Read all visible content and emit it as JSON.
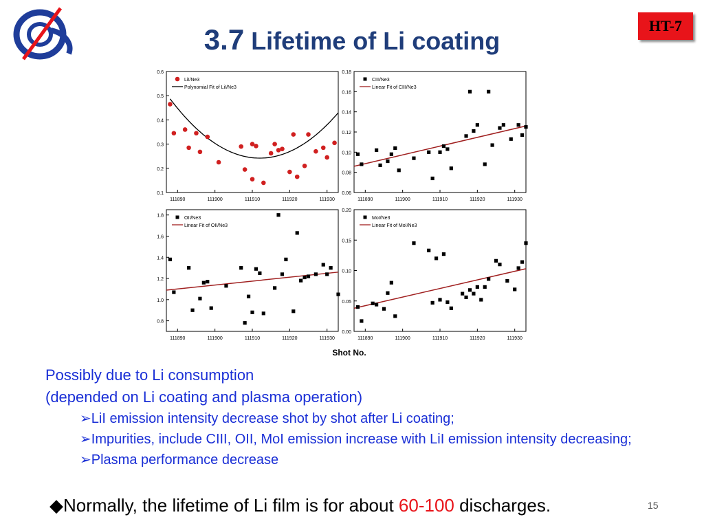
{
  "header": {
    "title_number": "3.7",
    "title_text": "Lifetime of Li coating",
    "badge": "HT-7"
  },
  "logo": {
    "icon": "institute-logo"
  },
  "colors": {
    "title": "#1f3d7a",
    "badge": "#e8141a",
    "notes": "#1a2fd6",
    "fit_line": "#a02020",
    "li_points": "#d02020"
  },
  "chart_common": {
    "xlabel": "Shot No."
  },
  "chart_data": [
    {
      "type": "scatter",
      "legend": [
        "LiI/Ne3",
        "Polynomial Fit of LiI/Ne3"
      ],
      "xlim": [
        111887,
        111933
      ],
      "ylim": [
        0.1,
        0.6
      ],
      "xticks": [
        111890,
        111900,
        111910,
        111920,
        111930
      ],
      "yticks": [
        0.1,
        0.2,
        0.3,
        0.4,
        0.5,
        0.6
      ],
      "ytick_labels": [
        "0.1",
        "0.2",
        "0.3",
        "0.4",
        "0.5",
        "0.6"
      ],
      "xtick_labels": [
        "111890",
        "111900",
        "111910",
        "111920",
        "111930"
      ],
      "marker": "circle",
      "fit": "poly",
      "fit_coeffs": {
        "a": 0.000425,
        "b": 111912,
        "c": 0.242
      },
      "points": [
        [
          111888,
          0.465
        ],
        [
          111889,
          0.345
        ],
        [
          111892,
          0.36
        ],
        [
          111893,
          0.285
        ],
        [
          111895,
          0.345
        ],
        [
          111896,
          0.268
        ],
        [
          111898,
          0.33
        ],
        [
          111901,
          0.225
        ],
        [
          111907,
          0.29
        ],
        [
          111908,
          0.195
        ],
        [
          111910,
          0.155
        ],
        [
          111910,
          0.3
        ],
        [
          111911,
          0.292
        ],
        [
          111913,
          0.14
        ],
        [
          111915,
          0.262
        ],
        [
          111916,
          0.3
        ],
        [
          111917,
          0.275
        ],
        [
          111918,
          0.28
        ],
        [
          111920,
          0.185
        ],
        [
          111921,
          0.34
        ],
        [
          111922,
          0.165
        ],
        [
          111924,
          0.21
        ],
        [
          111925,
          0.34
        ],
        [
          111927,
          0.27
        ],
        [
          111929,
          0.285
        ],
        [
          111930,
          0.245
        ],
        [
          111932,
          0.305
        ]
      ]
    },
    {
      "type": "scatter",
      "legend": [
        "CIII/Ne3",
        "Linear Fit of CIII/Ne3"
      ],
      "xlim": [
        111887,
        111933
      ],
      "ylim": [
        0.06,
        0.18
      ],
      "xticks": [
        111890,
        111900,
        111910,
        111920,
        111930
      ],
      "yticks": [
        0.06,
        0.08,
        0.1,
        0.12,
        0.14,
        0.16,
        0.18
      ],
      "ytick_labels": [
        "0.06",
        "0.08",
        "0.10",
        "0.12",
        "0.14",
        "0.16",
        "0.18"
      ],
      "xtick_labels": [
        "111890",
        "111900",
        "111910",
        "111920",
        "111930"
      ],
      "marker": "square",
      "fit": "linear",
      "fit_line": [
        [
          111887,
          0.086
        ],
        [
          111933,
          0.126
        ]
      ],
      "points": [
        [
          111888,
          0.098
        ],
        [
          111889,
          0.088
        ],
        [
          111893,
          0.102
        ],
        [
          111894,
          0.087
        ],
        [
          111896,
          0.091
        ],
        [
          111897,
          0.098
        ],
        [
          111898,
          0.104
        ],
        [
          111899,
          0.082
        ],
        [
          111903,
          0.094
        ],
        [
          111907,
          0.1
        ],
        [
          111908,
          0.074
        ],
        [
          111910,
          0.1
        ],
        [
          111911,
          0.106
        ],
        [
          111912,
          0.103
        ],
        [
          111913,
          0.084
        ],
        [
          111917,
          0.116
        ],
        [
          111918,
          0.16
        ],
        [
          111919,
          0.121
        ],
        [
          111920,
          0.127
        ],
        [
          111922,
          0.088
        ],
        [
          111923,
          0.16
        ],
        [
          111924,
          0.107
        ],
        [
          111926,
          0.124
        ],
        [
          111927,
          0.127
        ],
        [
          111929,
          0.113
        ],
        [
          111931,
          0.127
        ],
        [
          111932,
          0.117
        ],
        [
          111933,
          0.125
        ]
      ]
    },
    {
      "type": "scatter",
      "legend": [
        "OII/Ne3",
        "Linear Fit of OII/Ne3"
      ],
      "xlim": [
        111887,
        111933
      ],
      "ylim": [
        0.7,
        1.85
      ],
      "xticks": [
        111890,
        111900,
        111910,
        111920,
        111930
      ],
      "yticks": [
        0.8,
        1.0,
        1.2,
        1.4,
        1.6,
        1.8
      ],
      "ytick_labels": [
        "0.8",
        "1.0",
        "1.2",
        "1.4",
        "1.6",
        "1.8"
      ],
      "xtick_labels": [
        "111890",
        "111900",
        "111910",
        "111920",
        "111930"
      ],
      "marker": "square",
      "fit": "linear",
      "fit_line": [
        [
          111887,
          1.09
        ],
        [
          111933,
          1.26
        ]
      ],
      "points": [
        [
          111888,
          1.38
        ],
        [
          111889,
          1.07
        ],
        [
          111893,
          1.3
        ],
        [
          111894,
          0.9
        ],
        [
          111896,
          1.01
        ],
        [
          111897,
          1.16
        ],
        [
          111898,
          1.17
        ],
        [
          111899,
          0.92
        ],
        [
          111903,
          1.13
        ],
        [
          111907,
          1.3
        ],
        [
          111908,
          0.78
        ],
        [
          111909,
          1.03
        ],
        [
          111910,
          0.88
        ],
        [
          111911,
          1.29
        ],
        [
          111912,
          1.25
        ],
        [
          111913,
          0.87
        ],
        [
          111916,
          1.11
        ],
        [
          111917,
          1.8
        ],
        [
          111918,
          1.24
        ],
        [
          111919,
          1.38
        ],
        [
          111921,
          0.89
        ],
        [
          111922,
          1.63
        ],
        [
          111923,
          1.18
        ],
        [
          111924,
          1.21
        ],
        [
          111925,
          1.22
        ],
        [
          111927,
          1.24
        ],
        [
          111929,
          1.33
        ],
        [
          111930,
          1.24
        ],
        [
          111931,
          1.3
        ],
        [
          111933,
          1.05
        ]
      ]
    },
    {
      "type": "scatter",
      "legend": [
        "MoI/Ne3",
        "Linear Fit of MoI/Ne3"
      ],
      "xlim": [
        111887,
        111933
      ],
      "ylim": [
        0.0,
        0.2
      ],
      "xticks": [
        111890,
        111900,
        111910,
        111920,
        111930
      ],
      "yticks": [
        0.0,
        0.05,
        0.1,
        0.15,
        0.2
      ],
      "ytick_labels": [
        "0.00",
        "0.05",
        "0.10",
        "0.15",
        "0.20"
      ],
      "xtick_labels": [
        "111890",
        "111900",
        "111910",
        "111920",
        "111930"
      ],
      "marker": "square",
      "fit": "linear",
      "fit_line": [
        [
          111887,
          0.038
        ],
        [
          111933,
          0.103
        ]
      ],
      "points": [
        [
          111888,
          0.04
        ],
        [
          111889,
          0.017
        ],
        [
          111892,
          0.046
        ],
        [
          111893,
          0.044
        ],
        [
          111895,
          0.037
        ],
        [
          111896,
          0.063
        ],
        [
          111897,
          0.08
        ],
        [
          111898,
          0.025
        ],
        [
          111903,
          0.145
        ],
        [
          111907,
          0.133
        ],
        [
          111908,
          0.047
        ],
        [
          111909,
          0.12
        ],
        [
          111910,
          0.052
        ],
        [
          111911,
          0.127
        ],
        [
          111912,
          0.048
        ],
        [
          111913,
          0.038
        ],
        [
          111916,
          0.062
        ],
        [
          111917,
          0.056
        ],
        [
          111918,
          0.068
        ],
        [
          111919,
          0.062
        ],
        [
          111920,
          0.073
        ],
        [
          111921,
          0.052
        ],
        [
          111922,
          0.073
        ],
        [
          111923,
          0.086
        ],
        [
          111925,
          0.116
        ],
        [
          111926,
          0.11
        ],
        [
          111928,
          0.083
        ],
        [
          111930,
          0.069
        ],
        [
          111931,
          0.104
        ],
        [
          111932,
          0.114
        ],
        [
          111933,
          0.145
        ]
      ]
    }
  ],
  "notes": {
    "line1": "Possibly due to Li consumption",
    "line2": "(depended on Li coating and plasma operation)",
    "bullets": [
      "LiI emission intensity decrease shot by shot after Li coating;",
      "Impurities, include CIII, OII, MoI emission increase with LiI emission intensity decreasing;",
      "Plasma performance decrease"
    ],
    "bullet_glyph": "➢"
  },
  "conclusion": {
    "glyph": "◆",
    "before": "Normally, the lifetime of Li film is for about ",
    "highlight": "60-100",
    "after": " discharges."
  },
  "page_number": "15"
}
